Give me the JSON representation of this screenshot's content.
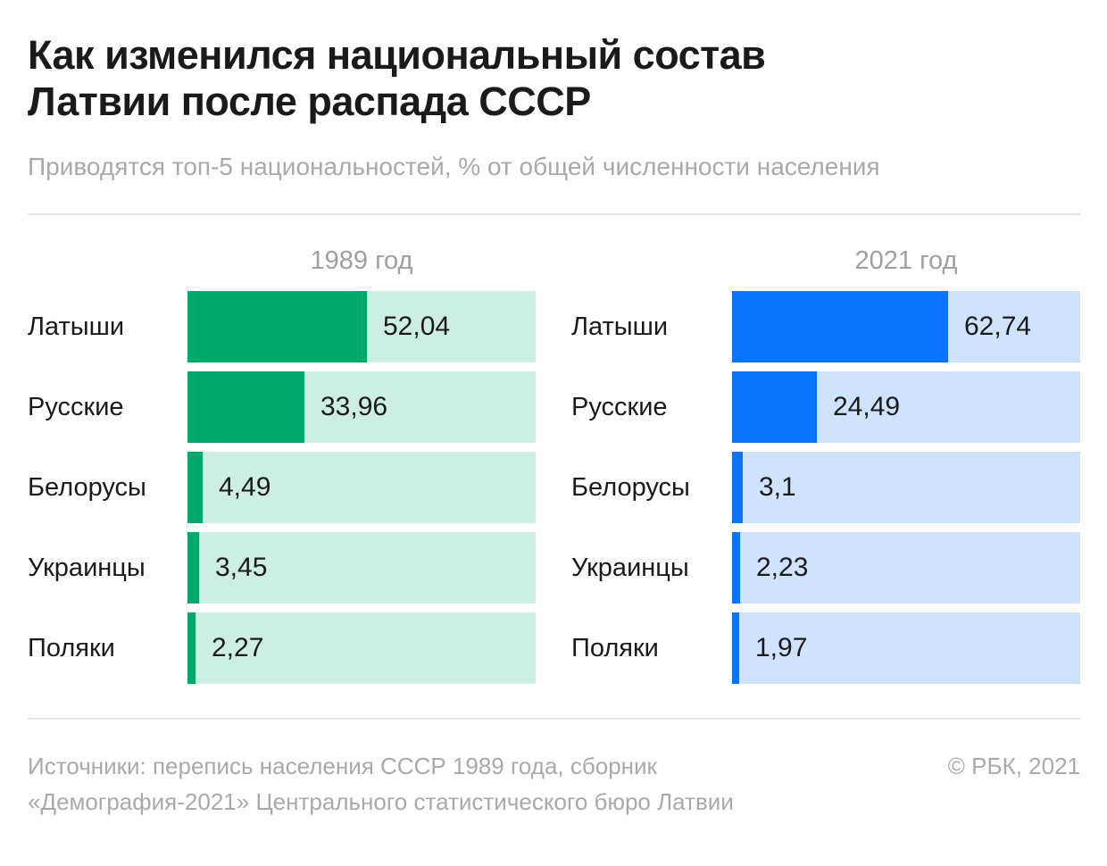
{
  "title_line1": "Как изменился национальный состав",
  "title_line2": "Латвии после распада СССР",
  "subtitle": "Приводятся топ-5 национальностей, % от общей численности населения",
  "footer": {
    "source_line1": "Источники: перепись населения СССР 1989 года, сборник",
    "source_line2": "«Демография-2021» Центрального статистического бюро Латвии",
    "copyright": "© РБК, 2021"
  },
  "chart_data": [
    {
      "type": "bar",
      "title": "1989 год",
      "categories": [
        "Латыши",
        "Русские",
        "Белорусы",
        "Украинцы",
        "Поляки"
      ],
      "values": [
        52.04,
        33.96,
        4.49,
        3.45,
        2.27
      ],
      "value_labels": [
        "52,04",
        "33,96",
        "4,49",
        "3,45",
        "2,27"
      ],
      "xlim": [
        0,
        100
      ],
      "orientation": "horizontal",
      "bar_color": "#00a86b",
      "track_color": "#cdeee2"
    },
    {
      "type": "bar",
      "title": "2021 год",
      "categories": [
        "Латыши",
        "Русские",
        "Белорусы",
        "Украинцы",
        "Поляки"
      ],
      "values": [
        62.74,
        24.49,
        3.1,
        2.23,
        1.97
      ],
      "value_labels": [
        "62,74",
        "24,49",
        "3,1",
        "2,23",
        "1,97"
      ],
      "xlim": [
        0,
        100
      ],
      "orientation": "horizontal",
      "bar_color": "#0a74ff",
      "track_color": "#cfe3ff"
    }
  ]
}
